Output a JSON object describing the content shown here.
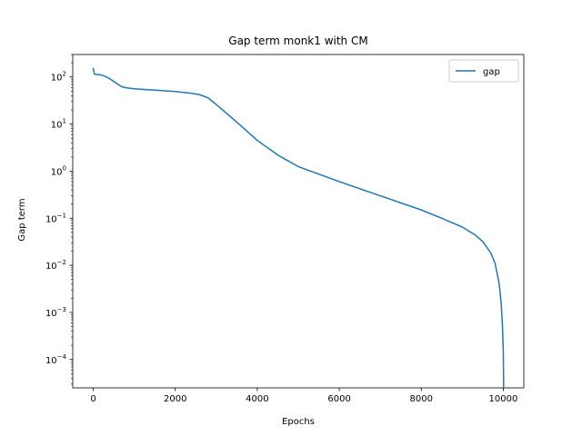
{
  "chart_data": {
    "type": "line",
    "title": "Gap term monk1 with CM",
    "xlabel": "Epochs",
    "ylabel": "Gap term",
    "xlim": [
      -500,
      10500
    ],
    "ylim": [
      2.5e-05,
      300
    ],
    "yscale": "log",
    "grid": false,
    "legend_position": "top-right",
    "x_ticks": [
      0,
      2000,
      4000,
      6000,
      8000,
      10000
    ],
    "x_tick_labels": [
      "0",
      "2000",
      "4000",
      "6000",
      "8000",
      "10000"
    ],
    "y_ticks": [
      0.0001,
      0.001,
      0.01,
      0.1,
      1,
      10,
      100
    ],
    "y_tick_labels": [
      {
        "base": "10",
        "exp": "−4"
      },
      {
        "base": "10",
        "exp": "−3"
      },
      {
        "base": "10",
        "exp": "−2"
      },
      {
        "base": "10",
        "exp": "−1"
      },
      {
        "base": "10",
        "exp": "0"
      },
      {
        "base": "10",
        "exp": "1"
      },
      {
        "base": "10",
        "exp": "2"
      }
    ],
    "series": [
      {
        "name": "gap",
        "color": "#1f77b4",
        "x": [
          0,
          30,
          100,
          200,
          300,
          400,
          500,
          600,
          700,
          800,
          1000,
          1500,
          2000,
          2400,
          2600,
          2800,
          3000,
          3500,
          4000,
          4500,
          5000,
          6000,
          7000,
          8000,
          8500,
          9000,
          9300,
          9500,
          9700,
          9800,
          9900,
          9950,
          9980,
          10000,
          10010
        ],
        "y": [
          150,
          115,
          113,
          110,
          102,
          92,
          80,
          70,
          62,
          59,
          56,
          52.5,
          49,
          45,
          42,
          36,
          26,
          11,
          4.5,
          2.2,
          1.25,
          0.6,
          0.3,
          0.15,
          0.1,
          0.065,
          0.045,
          0.032,
          0.018,
          0.011,
          0.004,
          0.0015,
          0.0005,
          0.00015,
          2e-05
        ]
      }
    ]
  }
}
